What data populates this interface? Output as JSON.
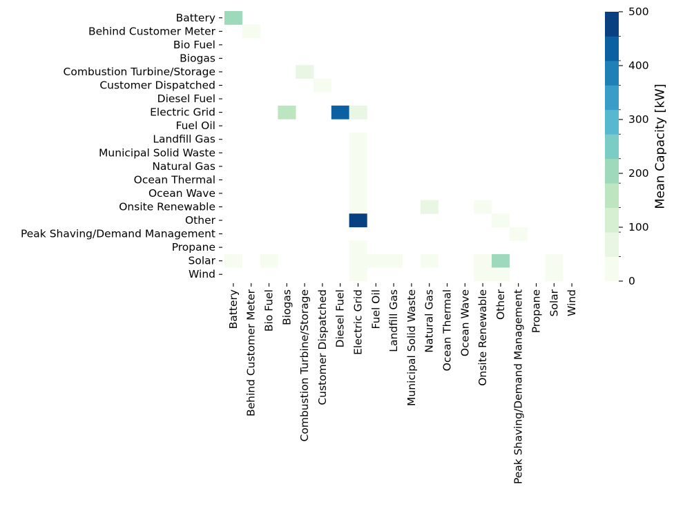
{
  "chart_data": {
    "type": "heatmap",
    "rows": [
      "Battery",
      "Behind Customer Meter",
      "Bio Fuel",
      "Biogas",
      "Combustion Turbine/Storage",
      "Customer Dispatched",
      "Diesel Fuel",
      "Electric Grid",
      "Fuel Oil",
      "Landfill Gas",
      "Municipal Solid Waste",
      "Natural Gas",
      "Ocean Thermal",
      "Ocean Wave",
      "Onsite Renewable",
      "Other",
      "Peak Shaving/Demand Management",
      "Propane",
      "Solar",
      "Wind"
    ],
    "columns": [
      "Battery",
      "Behind Customer Meter",
      "Bio Fuel",
      "Biogas",
      "Combustion Turbine/Storage",
      "Customer Dispatched",
      "Diesel Fuel",
      "Electric Grid",
      "Fuel Oil",
      "Landfill Gas",
      "Municipal Solid Waste",
      "Natural Gas",
      "Ocean Thermal",
      "Ocean Wave",
      "Onsite Renewable",
      "Other",
      "Peak Shaving/Demand Management",
      "Propane",
      "Solar",
      "Wind"
    ],
    "cells": [
      {
        "row": "Battery",
        "col": "Battery",
        "value": 210
      },
      {
        "row": "Behind Customer Meter",
        "col": "Behind Customer Meter",
        "value": 15
      },
      {
        "row": "Combustion Turbine/Storage",
        "col": "Combustion Turbine/Storage",
        "value": 90
      },
      {
        "row": "Customer Dispatched",
        "col": "Customer Dispatched",
        "value": 20
      },
      {
        "row": "Electric Grid",
        "col": "Biogas",
        "value": 140
      },
      {
        "row": "Electric Grid",
        "col": "Diesel Fuel",
        "value": 420
      },
      {
        "row": "Electric Grid",
        "col": "Electric Grid",
        "value": 90
      },
      {
        "row": "Landfill Gas",
        "col": "Electric Grid",
        "value": 5
      },
      {
        "row": "Municipal Solid Waste",
        "col": "Electric Grid",
        "value": 5
      },
      {
        "row": "Natural Gas",
        "col": "Electric Grid",
        "value": 5
      },
      {
        "row": "Ocean Thermal",
        "col": "Electric Grid",
        "value": 5
      },
      {
        "row": "Ocean Wave",
        "col": "Electric Grid",
        "value": 5
      },
      {
        "row": "Onsite Renewable",
        "col": "Electric Grid",
        "value": 5
      },
      {
        "row": "Onsite Renewable",
        "col": "Natural Gas",
        "value": 90
      },
      {
        "row": "Onsite Renewable",
        "col": "Onsite Renewable",
        "value": 20
      },
      {
        "row": "Other",
        "col": "Electric Grid",
        "value": 490
      },
      {
        "row": "Other",
        "col": "Other",
        "value": 20
      },
      {
        "row": "Peak Shaving/Demand Management",
        "col": "Peak Shaving/Demand Management",
        "value": 15
      },
      {
        "row": "Propane",
        "col": "Electric Grid",
        "value": 5
      },
      {
        "row": "Solar",
        "col": "Battery",
        "value": 10
      },
      {
        "row": "Solar",
        "col": "Bio Fuel",
        "value": 15
      },
      {
        "row": "Solar",
        "col": "Electric Grid",
        "value": 5
      },
      {
        "row": "Solar",
        "col": "Fuel Oil",
        "value": 10
      },
      {
        "row": "Solar",
        "col": "Landfill Gas",
        "value": 10
      },
      {
        "row": "Solar",
        "col": "Natural Gas",
        "value": 15
      },
      {
        "row": "Solar",
        "col": "Onsite Renewable",
        "value": 10
      },
      {
        "row": "Solar",
        "col": "Other",
        "value": 210
      },
      {
        "row": "Solar",
        "col": "Solar",
        "value": 10
      },
      {
        "row": "Wind",
        "col": "Electric Grid",
        "value": 5
      },
      {
        "row": "Wind",
        "col": "Onsite Renewable",
        "value": 5
      },
      {
        "row": "Wind",
        "col": "Other",
        "value": 10
      },
      {
        "row": "Wind",
        "col": "Solar",
        "value": 5
      }
    ],
    "colorbar": {
      "label": "Mean Capacity [kW]",
      "range": [
        0,
        500
      ],
      "ticks": [
        0,
        100,
        200,
        300,
        400,
        500
      ],
      "bin_colors": [
        "#f7fcf0",
        "#e8f6e3",
        "#d6efd0",
        "#bde5bf",
        "#9fd9bb",
        "#7accc4",
        "#57b8d0",
        "#3a9dc7",
        "#1f80b8",
        "#0b60a1",
        "#084081"
      ]
    },
    "grid": false,
    "xlabel": "",
    "ylabel": ""
  }
}
